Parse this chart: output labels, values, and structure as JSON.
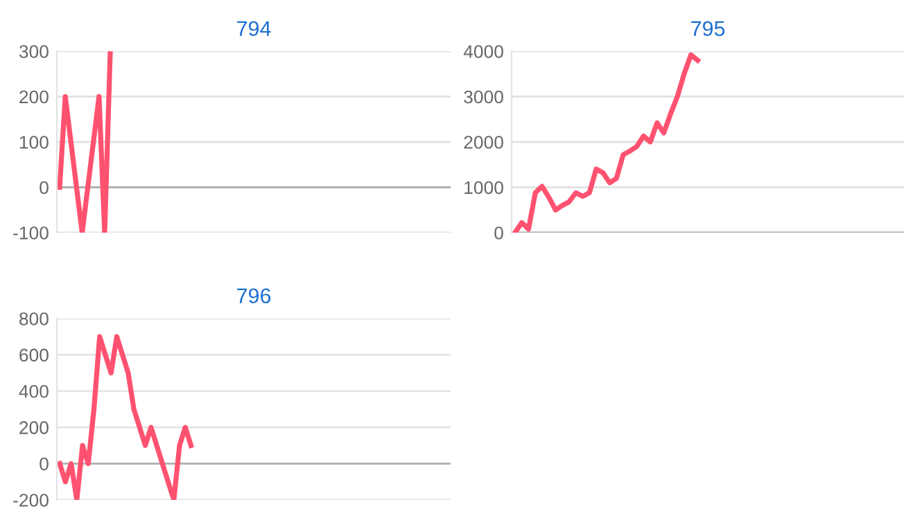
{
  "chart_data": [
    {
      "type": "line",
      "title": "794",
      "categories": [
        null,
        null,
        null,
        null,
        null,
        null,
        null,
        null,
        null,
        null,
        null,
        null,
        null,
        null,
        null,
        null,
        null,
        null,
        null,
        null,
        null,
        null,
        null,
        null,
        null,
        null,
        null,
        null,
        null,
        null,
        null,
        null,
        null,
        null,
        null,
        null,
        null,
        null,
        null,
        null,
        null,
        null,
        null,
        null,
        null,
        null,
        null,
        null,
        null,
        null,
        null,
        null,
        null,
        null,
        null,
        null,
        null,
        null,
        null,
        null,
        null,
        null,
        null,
        null,
        null,
        null,
        null,
        null,
        null,
        null
      ],
      "series": [
        {
          "color": "#ff5270",
          "values": [
            0,
            200,
            100,
            0,
            -100,
            0,
            100,
            200,
            -100,
            300,
            null,
            null,
            null,
            null,
            null,
            null,
            null,
            null,
            null,
            null,
            null,
            null,
            null,
            null,
            null,
            null,
            null,
            null,
            null,
            null,
            null,
            null,
            null,
            null,
            null,
            null,
            null,
            null,
            null,
            null,
            null,
            null,
            null,
            null,
            null,
            null,
            null,
            null,
            null,
            null,
            null,
            null,
            null,
            null,
            null,
            null,
            null,
            null,
            null,
            null,
            null,
            null,
            null,
            null,
            null,
            null,
            null,
            null,
            null,
            null
          ]
        }
      ],
      "ylim": [
        -100,
        300
      ],
      "yticks": [
        -100,
        0,
        100,
        200,
        300
      ],
      "grid": "y",
      "tick_labels": "y",
      "legend": false,
      "marker": "none",
      "line_style": "solid",
      "ref_lines": [
        {
          "axis": "y",
          "value": 0,
          "color": "#b0b0b0"
        }
      ]
    },
    {
      "type": "line",
      "title": "795",
      "categories": [
        null,
        null,
        null,
        null,
        null,
        null,
        null,
        null,
        null,
        null,
        null,
        null,
        null,
        null,
        null,
        null,
        null,
        null,
        null,
        null,
        null,
        null,
        null,
        null,
        null,
        null,
        null,
        null,
        null,
        null,
        null,
        null,
        null,
        null,
        null,
        null,
        null,
        null,
        null,
        null,
        null,
        null,
        null,
        null,
        null,
        null,
        null,
        null,
        null,
        null,
        null,
        null,
        null,
        null,
        null,
        null,
        null,
        null
      ],
      "series": [
        {
          "color": "#ff5270",
          "values": [
            0,
            220,
            80,
            880,
            1020,
            780,
            500,
            600,
            680,
            880,
            800,
            880,
            1400,
            1320,
            1100,
            1200,
            1720,
            1800,
            1900,
            2130,
            2000,
            2420,
            2200,
            2620,
            3000,
            3500,
            3920,
            3800,
            null,
            null,
            null,
            null,
            null,
            null,
            null,
            null,
            null,
            null,
            null,
            null,
            null,
            null,
            null,
            null,
            null,
            null,
            null,
            null,
            null,
            null,
            null,
            null,
            null,
            null,
            null,
            null,
            null,
            null
          ]
        }
      ],
      "ylim": [
        0,
        4000
      ],
      "yticks": [
        0,
        1000,
        2000,
        3000,
        4000
      ],
      "grid": "y",
      "tick_labels": "y",
      "legend": false,
      "marker": "none",
      "line_style": "solid",
      "ref_lines": [
        {
          "axis": "y",
          "value": 0,
          "color": "#b0b0b0"
        }
      ]
    },
    {
      "type": "line",
      "title": "796",
      "categories": [
        null,
        null,
        null,
        null,
        null,
        null,
        null,
        null,
        null,
        null,
        null,
        null,
        null,
        null,
        null,
        null,
        null,
        null,
        null,
        null,
        null,
        null,
        null,
        null,
        null,
        null,
        null,
        null,
        null,
        null,
        null,
        null,
        null,
        null,
        null,
        null,
        null,
        null,
        null,
        null,
        null,
        null,
        null,
        null,
        null,
        null,
        null,
        null,
        null,
        null,
        null,
        null,
        null,
        null,
        null,
        null,
        null,
        null,
        null,
        null,
        null,
        null,
        null,
        null,
        null,
        null,
        null,
        null,
        null
      ],
      "series": [
        {
          "color": "#ff5270",
          "values": [
            0,
            -100,
            0,
            -200,
            100,
            0,
            300,
            700,
            600,
            500,
            700,
            600,
            500,
            300,
            200,
            100,
            200,
            100,
            0,
            -100,
            -200,
            100,
            200,
            100,
            null,
            null,
            null,
            null,
            null,
            null,
            null,
            null,
            null,
            null,
            null,
            null,
            null,
            null,
            null,
            null,
            null,
            null,
            null,
            null,
            null,
            null,
            null,
            null,
            null,
            null,
            null,
            null,
            null,
            null,
            null,
            null,
            null,
            null,
            null,
            null,
            null,
            null,
            null,
            null,
            null,
            null,
            null,
            null,
            null
          ]
        }
      ],
      "ylim": [
        -200,
        800
      ],
      "yticks": [
        -200,
        0,
        200,
        400,
        600,
        800
      ],
      "grid": "y",
      "tick_labels": "y",
      "legend": false,
      "marker": "none",
      "line_style": "solid",
      "ref_lines": [
        {
          "axis": "y",
          "value": 0,
          "color": "#b0b0b0"
        }
      ]
    }
  ]
}
